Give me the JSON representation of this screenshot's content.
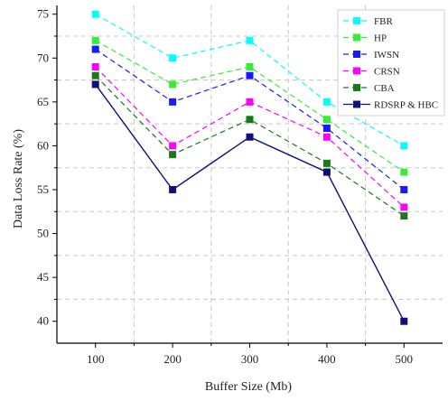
{
  "chart_data": {
    "type": "line",
    "xlabel": "Buffer Size (Mb)",
    "ylabel": "Data Loss Rate (%)",
    "x": [
      100,
      200,
      300,
      400,
      500
    ],
    "xlim": [
      50,
      550
    ],
    "ylim": [
      37.5,
      76
    ],
    "yticks": [
      40,
      45,
      50,
      55,
      60,
      65,
      70,
      75
    ],
    "grid": true,
    "legend_position": "top-right",
    "series": [
      {
        "name": "FBR",
        "color": "#00ffff",
        "style": "dashed",
        "values": [
          75,
          70,
          72,
          65,
          60
        ]
      },
      {
        "name": "HP",
        "color": "#33ee33",
        "style": "dashed",
        "values": [
          72,
          67,
          69,
          63,
          57
        ]
      },
      {
        "name": "IWSN",
        "color": "#1a1aff",
        "style": "dashed",
        "values": [
          71,
          65,
          68,
          62,
          55
        ]
      },
      {
        "name": "CRSN",
        "color": "#ff00ff",
        "style": "dashed",
        "values": [
          69,
          60,
          65,
          61,
          53
        ]
      },
      {
        "name": "CBA",
        "color": "#1a7a1a",
        "style": "dashed",
        "values": [
          68,
          59,
          63,
          58,
          52
        ]
      },
      {
        "name": "RDSRP & HBC",
        "color": "#10107a",
        "style": "solid",
        "values": [
          67,
          55,
          61,
          57,
          40
        ]
      }
    ]
  }
}
